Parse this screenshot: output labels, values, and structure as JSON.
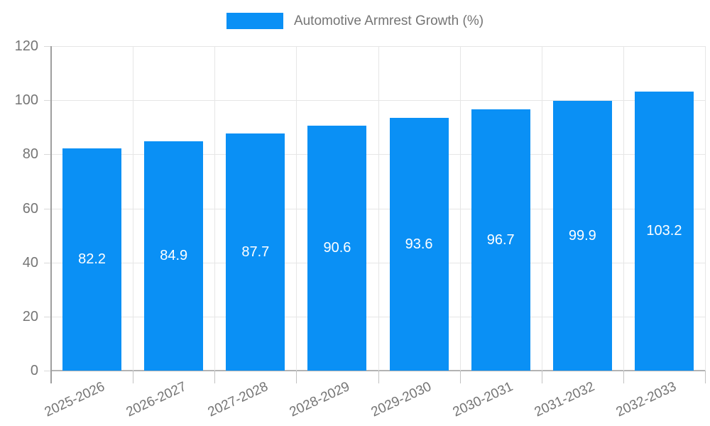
{
  "chart": {
    "legend_label": "Automotive Armrest Growth (%)"
  },
  "chart_data": {
    "type": "bar",
    "title": "Automotive Armrest Growth (%)",
    "series_name": "Automotive Armrest Growth (%)",
    "categories": [
      "2025-2026",
      "2026-2027",
      "2027-2028",
      "2028-2029",
      "2029-2030",
      "2030-2031",
      "2031-2032",
      "2032-2033"
    ],
    "values": [
      82.2,
      84.9,
      87.7,
      90.6,
      93.6,
      96.7,
      99.9,
      103.2
    ],
    "bar_labels": [
      "82.2",
      "84.9",
      "87.7",
      "90.6",
      "93.6",
      "96.7",
      "99.9",
      "103.2"
    ],
    "xlabel": "",
    "ylabel": "",
    "ylim": [
      0,
      120
    ],
    "yticks": [
      0,
      20,
      40,
      60,
      80,
      100,
      120
    ],
    "grid": true,
    "legend_position": "top-center",
    "x_label_rotation_deg": -25,
    "colors": {
      "bar": "#0a90f5",
      "bar_value_text": "#ffffff",
      "axis_text": "#757575",
      "gridline": "#e6e6e6",
      "axis_line": "#9e9e9e",
      "baseline": "#b3b3b3"
    }
  }
}
